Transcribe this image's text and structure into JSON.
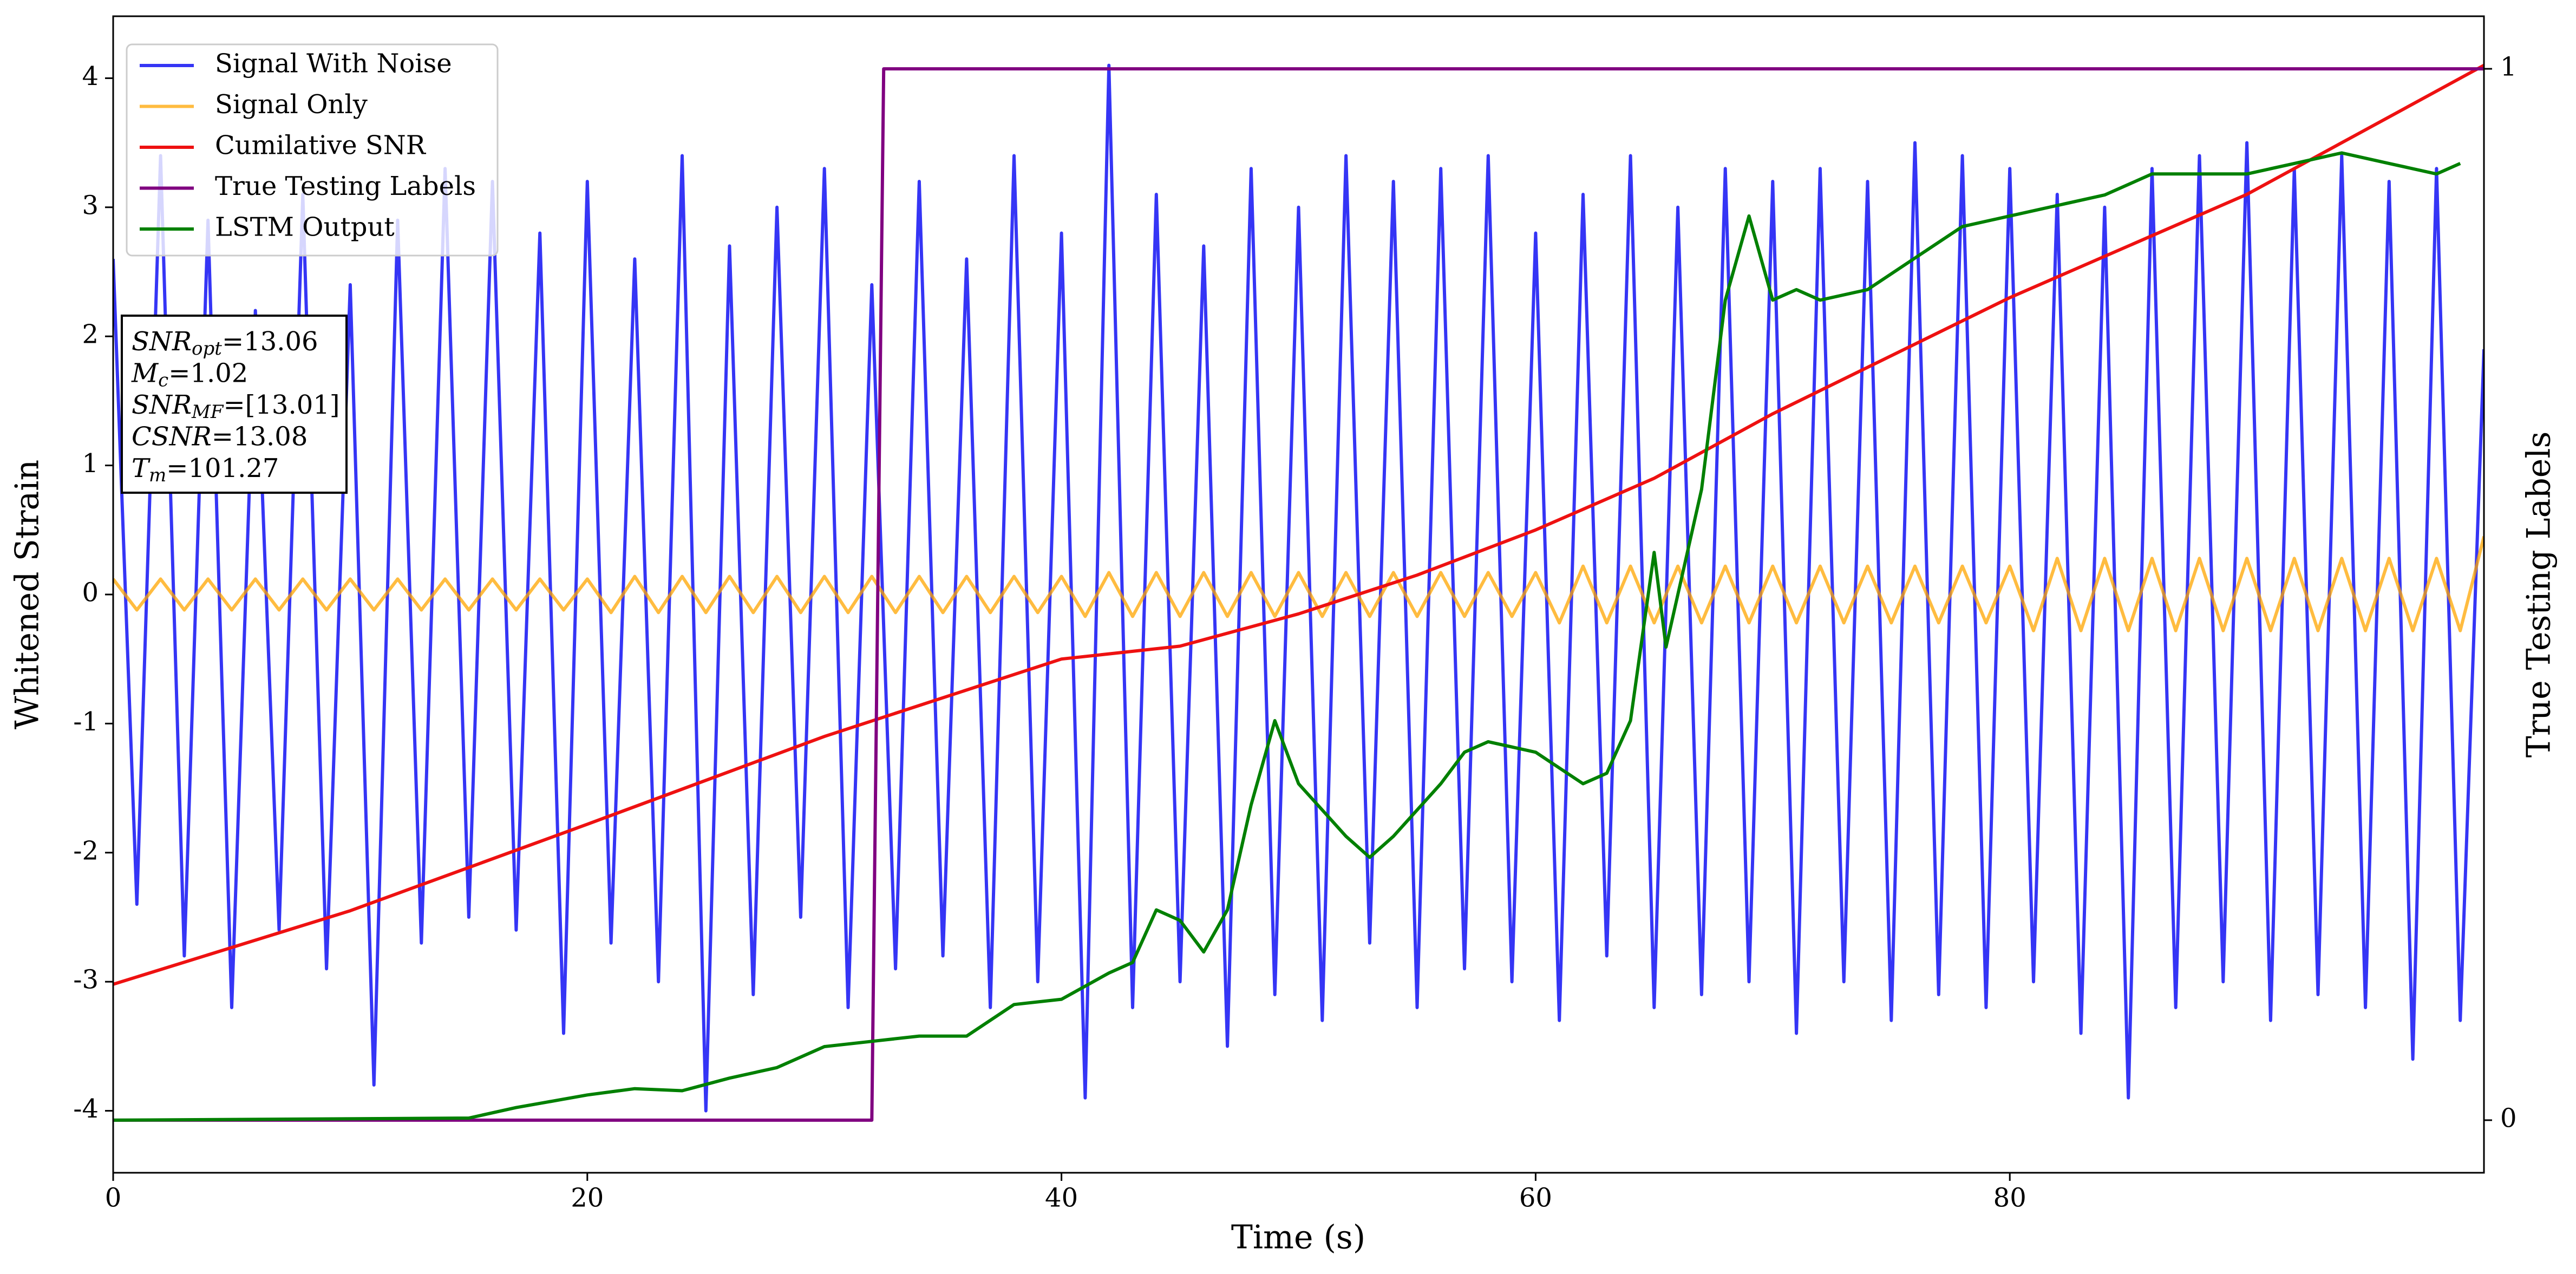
{
  "chart_data": {
    "type": "line",
    "xlabel": "Time (s)",
    "ylabel": "Whitened Strain",
    "y2label": "True Testing Labels",
    "xlim": [
      0,
      100
    ],
    "ylim": [
      -4.48,
      4.48
    ],
    "y2lim": [
      -0.05,
      1.05
    ],
    "xticks": [
      0,
      20,
      40,
      60,
      80
    ],
    "yticks": [
      -4,
      -3,
      -2,
      -1,
      0,
      1,
      2,
      3,
      4
    ],
    "y2ticks": [
      0,
      1
    ],
    "legend": "upper left",
    "annotations": [
      {
        "symbol": "SNR",
        "subscript": "opt",
        "text": "=13.06"
      },
      {
        "symbol": "M",
        "subscript": "c",
        "text": "=1.02"
      },
      {
        "symbol": "SNR",
        "subscript": "MF",
        "text": "=[13.01]"
      },
      {
        "symbol": "CSNR",
        "text": "=13.08"
      },
      {
        "symbol": "T",
        "subscript": "m",
        "text": "=101.27"
      }
    ],
    "series": [
      {
        "name": "Signal With Noise",
        "color": "#3535f5",
        "opacity": 1,
        "x": [
          0,
          1,
          2,
          3,
          4,
          5,
          6,
          7,
          8,
          9,
          10,
          11,
          12,
          13,
          14,
          15,
          16,
          17,
          18,
          19,
          20,
          21,
          22,
          23,
          24,
          25,
          26,
          27,
          28,
          29,
          30,
          31,
          32,
          33,
          34,
          35,
          36,
          37,
          38,
          39,
          40,
          41,
          42,
          43,
          44,
          45,
          46,
          47,
          48,
          49,
          50,
          51,
          52,
          53,
          54,
          55,
          56,
          57,
          58,
          59,
          60,
          61,
          62,
          63,
          64,
          65,
          66,
          67,
          68,
          69,
          70,
          71,
          72,
          73,
          74,
          75,
          76,
          77,
          78,
          79,
          80,
          81,
          82,
          83,
          84,
          85,
          86,
          87,
          88,
          89,
          90,
          91,
          92,
          93,
          94,
          95,
          96,
          97,
          98,
          99,
          100
        ],
        "values": [
          2.6,
          -2.4,
          3.4,
          -2.8,
          2.9,
          -3.2,
          2.2,
          -2.6,
          3.1,
          -2.9,
          2.4,
          -3.8,
          2.9,
          -2.7,
          3.3,
          -2.5,
          3.2,
          -2.6,
          2.8,
          -3.4,
          3.2,
          -2.7,
          2.6,
          -3.0,
          3.4,
          -4.0,
          2.7,
          -3.1,
          3.0,
          -2.5,
          3.3,
          -3.2,
          2.4,
          -2.9,
          3.2,
          -2.8,
          2.6,
          -3.2,
          3.4,
          -3.0,
          2.8,
          -3.9,
          4.1,
          -3.2,
          3.1,
          -3.0,
          2.7,
          -3.5,
          3.3,
          -3.1,
          3.0,
          -3.3,
          3.4,
          -2.7,
          3.2,
          -3.2,
          3.3,
          -2.9,
          3.4,
          -3.0,
          2.8,
          -3.3,
          3.1,
          -2.8,
          3.4,
          -3.2,
          3.0,
          -3.1,
          3.3,
          -3.0,
          3.2,
          -3.4,
          3.3,
          -3.0,
          3.2,
          -3.3,
          3.5,
          -3.1,
          3.4,
          -3.2,
          3.3,
          -3.0,
          3.1,
          -3.4,
          3.0,
          -3.9,
          3.3,
          -3.2,
          3.4,
          -3.0,
          3.5,
          -3.3,
          3.3,
          -3.1,
          3.4,
          -3.2,
          3.2,
          -3.6,
          3.3,
          -3.3,
          1.9
        ]
      },
      {
        "name": "Signal Only",
        "color": "#ffa500",
        "opacity": 0.75,
        "x": [
          0,
          1,
          2,
          3,
          4,
          5,
          6,
          7,
          8,
          9,
          10,
          11,
          12,
          13,
          14,
          15,
          16,
          17,
          18,
          19,
          20,
          21,
          22,
          23,
          24,
          25,
          26,
          27,
          28,
          29,
          30,
          31,
          32,
          33,
          34,
          35,
          36,
          37,
          38,
          39,
          40,
          41,
          42,
          43,
          44,
          45,
          46,
          47,
          48,
          49,
          50,
          51,
          52,
          53,
          54,
          55,
          56,
          57,
          58,
          59,
          60,
          61,
          62,
          63,
          64,
          65,
          66,
          67,
          68,
          69,
          70,
          71,
          72,
          73,
          74,
          75,
          76,
          77,
          78,
          79,
          80,
          81,
          82,
          83,
          84,
          85,
          86,
          87,
          88,
          89,
          90,
          91,
          92,
          93,
          94,
          95,
          96,
          97,
          98,
          99,
          100
        ],
        "values": [
          0.12,
          -0.12,
          0.12,
          -0.12,
          0.12,
          -0.12,
          0.12,
          -0.12,
          0.12,
          -0.12,
          0.12,
          -0.12,
          0.12,
          -0.12,
          0.12,
          -0.12,
          0.12,
          -0.12,
          0.12,
          -0.12,
          0.12,
          -0.14,
          0.14,
          -0.14,
          0.14,
          -0.14,
          0.14,
          -0.14,
          0.14,
          -0.14,
          0.14,
          -0.14,
          0.14,
          -0.14,
          0.14,
          -0.14,
          0.14,
          -0.14,
          0.14,
          -0.14,
          0.14,
          -0.17,
          0.17,
          -0.17,
          0.17,
          -0.17,
          0.17,
          -0.17,
          0.17,
          -0.17,
          0.17,
          -0.17,
          0.17,
          -0.17,
          0.17,
          -0.17,
          0.17,
          -0.17,
          0.17,
          -0.17,
          0.17,
          -0.22,
          0.22,
          -0.22,
          0.22,
          -0.22,
          0.22,
          -0.22,
          0.22,
          -0.22,
          0.22,
          -0.22,
          0.22,
          -0.22,
          0.22,
          -0.22,
          0.22,
          -0.22,
          0.22,
          -0.22,
          0.22,
          -0.28,
          0.28,
          -0.28,
          0.28,
          -0.28,
          0.28,
          -0.28,
          0.28,
          -0.28,
          0.28,
          -0.28,
          0.28,
          -0.28,
          0.28,
          -0.28,
          0.28,
          -0.28,
          0.28,
          -0.28,
          0.45
        ]
      },
      {
        "name": "Cumilative SNR",
        "color": "#ee1111",
        "opacity": 1,
        "x": [
          0,
          10,
          20,
          30,
          40,
          45,
          50,
          55,
          60,
          65,
          70,
          80,
          90,
          100
        ],
        "values": [
          -3.02,
          -2.45,
          -1.78,
          -1.1,
          -0.5,
          -0.4,
          -0.15,
          0.15,
          0.5,
          0.9,
          1.4,
          2.3,
          3.1,
          4.1
        ]
      },
      {
        "name": "True Testing Labels",
        "color": "#800080",
        "opacity": 1,
        "axis": "y2",
        "x": [
          0,
          32,
          32.5,
          100
        ],
        "values": [
          0,
          0,
          1,
          1
        ]
      },
      {
        "name": "LSTM Output",
        "color": "#008000",
        "opacity": 1,
        "axis": "y2",
        "x": [
          0,
          15,
          17,
          19,
          20,
          22,
          24,
          26,
          28,
          30,
          32,
          34,
          36,
          38,
          40,
          42,
          43,
          44,
          45,
          46,
          47,
          48,
          49,
          50,
          52,
          53,
          54,
          56,
          57,
          58,
          60,
          62,
          63,
          64,
          65,
          65.5,
          66,
          67,
          68,
          69,
          70,
          71,
          72,
          74,
          76,
          78,
          80,
          82,
          84,
          86,
          88,
          90,
          92,
          94,
          96,
          98,
          99
        ],
        "values": [
          0,
          0.002,
          0.012,
          0.02,
          0.024,
          0.03,
          0.028,
          0.04,
          0.05,
          0.07,
          0.075,
          0.08,
          0.08,
          0.11,
          0.115,
          0.14,
          0.15,
          0.2,
          0.19,
          0.16,
          0.2,
          0.3,
          0.38,
          0.32,
          0.27,
          0.25,
          0.27,
          0.32,
          0.35,
          0.36,
          0.35,
          0.32,
          0.33,
          0.38,
          0.54,
          0.45,
          0.5,
          0.6,
          0.78,
          0.86,
          0.78,
          0.79,
          0.78,
          0.79,
          0.82,
          0.85,
          0.86,
          0.87,
          0.88,
          0.9,
          0.9,
          0.9,
          0.91,
          0.92,
          0.91,
          0.9,
          0.91
        ]
      }
    ]
  }
}
